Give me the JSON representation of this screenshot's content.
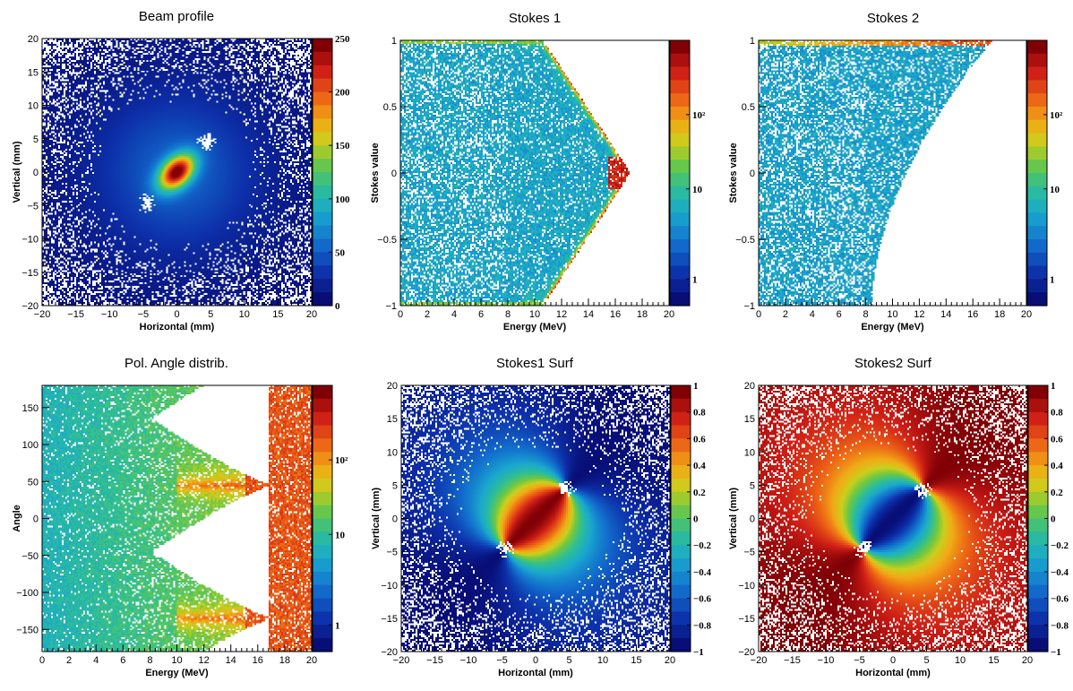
{
  "chart_data": [
    {
      "type": "heatmap",
      "id": "beam",
      "title": "Beam profile",
      "xlabel": "Horizontal (mm)",
      "ylabel": "Vertical (mm)",
      "xlim": [
        -20,
        20
      ],
      "ylim": [
        -20,
        20
      ],
      "xticks": [
        "−20",
        "−15",
        "−10",
        "−5",
        "0",
        "5",
        "10",
        "15",
        "20"
      ],
      "yticks": [
        "20",
        "15",
        "10",
        "5",
        "0",
        "−5",
        "−10",
        "−15",
        "−20"
      ],
      "zscale": "linear",
      "zlim": [
        0,
        255
      ],
      "zticks": [
        "250",
        "200",
        "150",
        "100",
        "50",
        "0"
      ],
      "features": "central elliptical hot spot near (0,0) elongated along the anti-diagonal, two empty points near (4.5,4.5) and (-4.5,-4.5)"
    },
    {
      "type": "heatmap",
      "id": "s1",
      "title": "Stokes 1",
      "xlabel": "Energy (MeV)",
      "ylabel": "Stokes value",
      "xlim": [
        0,
        20
      ],
      "ylim": [
        -1,
        1
      ],
      "xticks": [
        "0",
        "2",
        "4",
        "6",
        "8",
        "10",
        "12",
        "14",
        "16",
        "18",
        "20"
      ],
      "yticks": [
        "1",
        "0.5",
        "0",
        "−0.5",
        "−1"
      ],
      "zscale": "log",
      "zticks": [
        "10²",
        "10",
        "1"
      ],
      "features": "filled for E < 10.5 MeV, triangular envelope closing to a point at 17 MeV, value 0"
    },
    {
      "type": "heatmap",
      "id": "s2",
      "title": "Stokes 2",
      "xlabel": "Energy (MeV)",
      "ylabel": "Stokes value",
      "xlim": [
        0,
        20
      ],
      "ylim": [
        -1,
        1
      ],
      "xticks": [
        "0",
        "2",
        "4",
        "6",
        "8",
        "10",
        "12",
        "14",
        "16",
        "18",
        "20"
      ],
      "yticks": [
        "1",
        "0.5",
        "0",
        "−0.5",
        "−1"
      ],
      "zscale": "log",
      "zticks": [
        "10²",
        "10",
        "1"
      ],
      "features": "lower boundary rises from -1 at 8.5 MeV to 1 at 17.5 MeV, dense band along value 1"
    },
    {
      "type": "heatmap",
      "id": "angle",
      "title": "Pol. Angle distrib.",
      "xlabel": "Energy (MeV)",
      "ylabel": "Angle",
      "xlim": [
        0,
        20
      ],
      "ylim": [
        -180,
        180
      ],
      "xticks": [
        "0",
        "2",
        "4",
        "6",
        "8",
        "10",
        "12",
        "14",
        "16",
        "18",
        "20"
      ],
      "yticks": [
        "150",
        "100",
        "50",
        "0",
        "−50",
        "−100",
        "−150"
      ],
      "zscale": "log",
      "zticks": [
        "10²",
        "10",
        "1"
      ],
      "features": "two lobes converging at 16.8 MeV on angles 45 and -135"
    },
    {
      "type": "heatmap",
      "id": "s1surf",
      "title": "Stokes1 Surf",
      "xlabel": "Horizontal (mm)",
      "ylabel": "Vertical (mm)",
      "xlim": [
        -20,
        20
      ],
      "ylim": [
        -20,
        20
      ],
      "xticks": [
        "−20",
        "−15",
        "−10",
        "−5",
        "0",
        "5",
        "10",
        "15",
        "20"
      ],
      "yticks": [
        "20",
        "15",
        "10",
        "5",
        "0",
        "−5",
        "−10",
        "−15",
        "−20"
      ],
      "zscale": "linear",
      "zlim": [
        -1,
        1
      ],
      "zticks": [
        "1",
        "0.8",
        "0.6",
        "0.4",
        "0.2",
        "0",
        "−0.2",
        "−0.4",
        "−0.6",
        "−0.8",
        "−1"
      ],
      "features": "cos(2 theta) pattern around singular points at (4.5,4.5) and (-4.5,-4.5)"
    },
    {
      "type": "heatmap",
      "id": "s2surf",
      "title": "Stokes2 Surf",
      "xlabel": "Horizontal (mm)",
      "ylabel": "Vertical (mm)",
      "xlim": [
        -20,
        20
      ],
      "ylim": [
        -20,
        20
      ],
      "xticks": [
        "−20",
        "−15",
        "−10",
        "−5",
        "0",
        "5",
        "10",
        "15",
        "20"
      ],
      "yticks": [
        "20",
        "15",
        "10",
        "5",
        "0",
        "−5",
        "−10",
        "−15",
        "−20"
      ],
      "zscale": "linear",
      "zlim": [
        -1,
        1
      ],
      "zticks": [
        "1",
        "0.8",
        "0.6",
        "0.4",
        "0.2",
        "0",
        "−0.2",
        "−0.4",
        "−0.6",
        "−0.8",
        "−1"
      ],
      "features": "sin(2 theta) pattern around singular points at (4.5,4.5) and (-4.5,-4.5)"
    }
  ]
}
